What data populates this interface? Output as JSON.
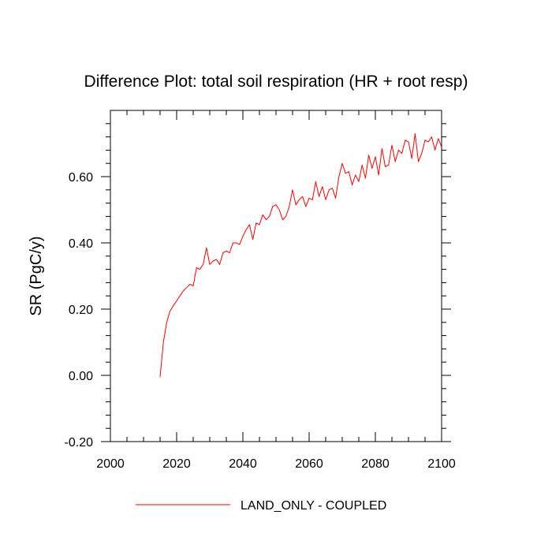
{
  "chart_data": {
    "type": "line",
    "title": "Difference Plot: total soil respiration (HR + root resp)",
    "xlabel": "",
    "ylabel": "SR  (PgC/y)",
    "xlim": [
      2000,
      2100
    ],
    "ylim": [
      -0.2,
      0.8
    ],
    "x_ticks": [
      2000,
      2020,
      2040,
      2060,
      2080,
      2100
    ],
    "x_tick_labels": [
      "2000",
      "2020",
      "2040",
      "2060",
      "2080",
      "2100"
    ],
    "y_ticks": [
      -0.2,
      0.0,
      0.2,
      0.4,
      0.6
    ],
    "y_tick_labels": [
      "-0.20",
      "0.00",
      "0.20",
      "0.40",
      "0.60"
    ],
    "legend_position": "bottom-center",
    "series": [
      {
        "name": "LAND_ONLY - COUPLED",
        "color": "#ff0000",
        "x": [
          2015,
          2016,
          2017,
          2018,
          2019,
          2020,
          2021,
          2022,
          2023,
          2024,
          2025,
          2026,
          2027,
          2028,
          2029,
          2030,
          2031,
          2032,
          2033,
          2034,
          2035,
          2036,
          2037,
          2038,
          2039,
          2040,
          2041,
          2042,
          2043,
          2044,
          2045,
          2046,
          2047,
          2048,
          2049,
          2050,
          2051,
          2052,
          2053,
          2054,
          2055,
          2056,
          2057,
          2058,
          2059,
          2060,
          2061,
          2062,
          2063,
          2064,
          2065,
          2066,
          2067,
          2068,
          2069,
          2070,
          2071,
          2072,
          2073,
          2074,
          2075,
          2076,
          2077,
          2078,
          2079,
          2080,
          2081,
          2082,
          2083,
          2084,
          2085,
          2086,
          2087,
          2088,
          2089,
          2090,
          2091,
          2092,
          2093,
          2094,
          2095,
          2096,
          2097,
          2098,
          2099,
          2100
        ],
        "values": [
          -0.005,
          0.1,
          0.16,
          0.195,
          0.21,
          0.225,
          0.24,
          0.255,
          0.265,
          0.275,
          0.27,
          0.325,
          0.32,
          0.335,
          0.385,
          0.335,
          0.345,
          0.35,
          0.335,
          0.37,
          0.375,
          0.37,
          0.4,
          0.4,
          0.395,
          0.42,
          0.44,
          0.455,
          0.41,
          0.46,
          0.455,
          0.485,
          0.47,
          0.48,
          0.51,
          0.515,
          0.5,
          0.47,
          0.48,
          0.51,
          0.56,
          0.515,
          0.53,
          0.54,
          0.51,
          0.535,
          0.53,
          0.585,
          0.54,
          0.57,
          0.53,
          0.56,
          0.565,
          0.535,
          0.6,
          0.64,
          0.61,
          0.615,
          0.575,
          0.605,
          0.585,
          0.635,
          0.595,
          0.665,
          0.625,
          0.66,
          0.605,
          0.685,
          0.63,
          0.635,
          0.695,
          0.645,
          0.68,
          0.67,
          0.71,
          0.705,
          0.655,
          0.73,
          0.645,
          0.67,
          0.71,
          0.705,
          0.72,
          0.68,
          0.715,
          0.69
        ]
      }
    ]
  }
}
